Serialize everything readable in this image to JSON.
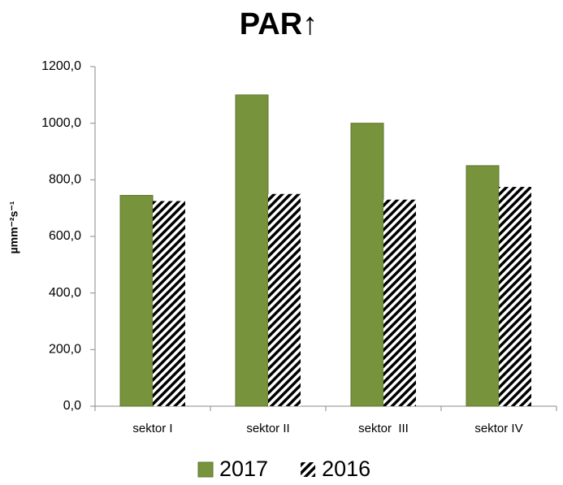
{
  "chart_data": {
    "type": "bar",
    "title": "PAR↑",
    "y_label": "µmm⁻²s⁻¹",
    "categories": [
      "sektor I",
      "sektor II",
      "sektor  III",
      "sektor IV"
    ],
    "series": [
      {
        "name": "2017",
        "color": "#77933c",
        "values": [
          745,
          1100,
          1000,
          850
        ]
      },
      {
        "name": "2016",
        "color": "#000000",
        "hatch": true,
        "values": [
          725,
          750,
          730,
          775
        ]
      }
    ],
    "ylim": [
      0,
      1200
    ],
    "yticks": [
      {
        "value": 0,
        "label": "0,0"
      },
      {
        "value": 200,
        "label": "200,0"
      },
      {
        "value": 400,
        "label": "400,0"
      },
      {
        "value": 600,
        "label": "600,0"
      },
      {
        "value": 800,
        "label": "800,0"
      },
      {
        "value": 1000,
        "label": "1000,0"
      },
      {
        "value": 1200,
        "label": "1200,0"
      }
    ],
    "grid": false
  }
}
